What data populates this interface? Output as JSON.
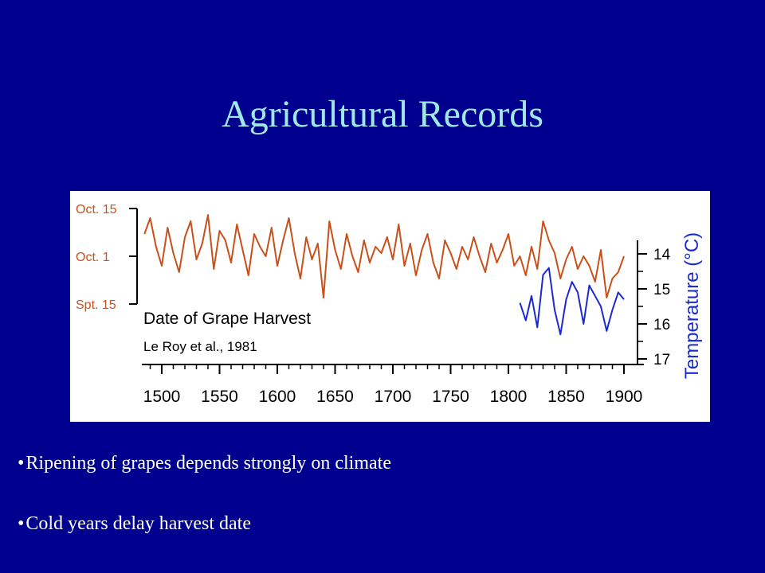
{
  "slide": {
    "title": "Agricultural Records",
    "bullets": [
      "Ripening of grapes depends strongly on climate",
      "Cold years delay harvest date"
    ],
    "bullet_glyph": "•"
  },
  "colors": {
    "background": "#00008f",
    "title": "#9fe8e8",
    "harvest_series": "#c8501a",
    "temperature_series": "#1a2ad0",
    "temperature_axis_label": "#1a2ad0"
  },
  "chart_data": {
    "type": "line",
    "title": "",
    "xlabel": "",
    "xlim": [
      1485,
      1905
    ],
    "x_ticks": [
      "1500",
      "1550",
      "1600",
      "1650",
      "1700",
      "1750",
      "1800",
      "1850",
      "1900"
    ],
    "left_axis": {
      "tick_labels": [
        "Oct. 15",
        "Oct. 1",
        "Spt. 15"
      ],
      "tick_days": [
        0,
        15,
        30
      ],
      "note": "days after Oct. 15 reversed: up = later harvest"
    },
    "right_axis": {
      "label": "Temperature (°C)",
      "tick_labels": [
        "14",
        "15",
        "16",
        "17"
      ],
      "ylim": [
        17,
        13.6
      ],
      "inverted": true
    },
    "annotations": [
      "Date of Grape Harvest",
      "Le Roy et al., 1981"
    ],
    "legend": "none",
    "grid": false,
    "series": [
      {
        "axis": "left",
        "x": [
          1485,
          1490,
          1495,
          1500,
          1505,
          1510,
          1515,
          1520,
          1525,
          1530,
          1535,
          1540,
          1545,
          1550,
          1555,
          1560,
          1565,
          1570,
          1575,
          1580,
          1585,
          1590,
          1595,
          1600,
          1605,
          1610,
          1615,
          1620,
          1625,
          1630,
          1635,
          1640,
          1645,
          1650,
          1655,
          1660,
          1665,
          1670,
          1675,
          1680,
          1685,
          1690,
          1695,
          1700,
          1705,
          1710,
          1715,
          1720,
          1725,
          1730,
          1735,
          1740,
          1745,
          1750,
          1755,
          1760,
          1765,
          1770,
          1775,
          1780,
          1785,
          1790,
          1795,
          1800,
          1805,
          1810,
          1815,
          1820,
          1825,
          1830,
          1835,
          1840,
          1845,
          1850,
          1855,
          1860,
          1865,
          1870,
          1875,
          1880,
          1885,
          1890,
          1895,
          1900
        ],
        "y": [
          8,
          3,
          12,
          18,
          6,
          14,
          20,
          9,
          4,
          16,
          11,
          2,
          19,
          7,
          10,
          17,
          5,
          13,
          21,
          8,
          12,
          15,
          6,
          18,
          10,
          3,
          14,
          22,
          9,
          16,
          11,
          28,
          4,
          13,
          19,
          8,
          15,
          20,
          10,
          17,
          12,
          14,
          9,
          16,
          5,
          18,
          11,
          21,
          13,
          8,
          17,
          22,
          10,
          14,
          19,
          12,
          16,
          9,
          15,
          20,
          11,
          17,
          13,
          8,
          18,
          15,
          21,
          12,
          19,
          4,
          10,
          14,
          22,
          16,
          12,
          19,
          15,
          18,
          23,
          13,
          28,
          22,
          20,
          15
        ]
      },
      {
        "axis": "right",
        "x": [
          1810,
          1815,
          1820,
          1825,
          1830,
          1835,
          1840,
          1845,
          1850,
          1855,
          1860,
          1865,
          1870,
          1875,
          1880,
          1885,
          1890,
          1895,
          1900
        ],
        "y": [
          15.4,
          15.9,
          15.2,
          16.1,
          14.6,
          14.4,
          15.6,
          16.3,
          15.3,
          14.8,
          15.1,
          16.0,
          14.9,
          15.2,
          15.5,
          16.2,
          15.6,
          15.1,
          15.3
        ]
      }
    ]
  }
}
